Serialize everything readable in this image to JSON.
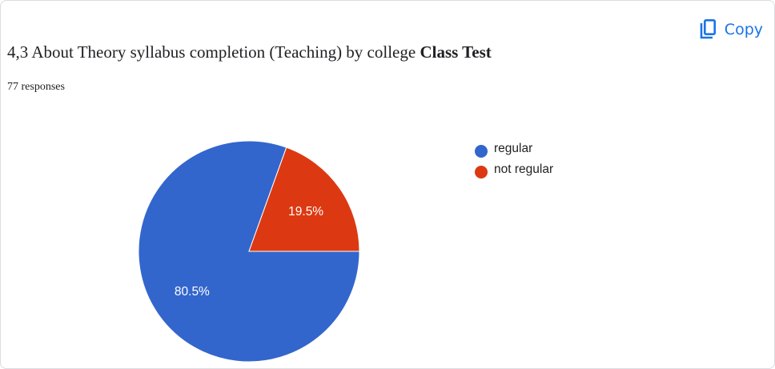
{
  "header": {
    "copy_label": "Copy",
    "copy_icon": "copy-icon",
    "title_prefix": "4,3 About Theory syllabus completion (Teaching) by college ",
    "title_bold": "Class Test",
    "responses": "77 responses"
  },
  "colors": {
    "accent": "#1a73e8"
  },
  "chart_data": {
    "type": "pie",
    "categories": [
      "regular",
      "not regular"
    ],
    "values": [
      80.5,
      19.5
    ],
    "labels": [
      "80.5%",
      "19.5%"
    ],
    "colors": [
      "#3366cc",
      "#dc3912"
    ],
    "legend_position": "right"
  }
}
